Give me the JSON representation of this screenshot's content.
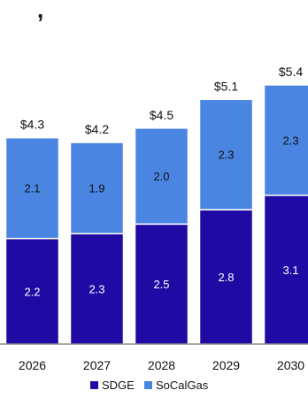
{
  "header_fragment": ", ",
  "chart_data": {
    "type": "bar",
    "stacked": true,
    "categories": [
      "2026",
      "2027",
      "2028",
      "2029",
      "2030"
    ],
    "series": [
      {
        "name": "SDGE",
        "values": [
          2.2,
          2.3,
          2.5,
          2.8,
          3.1
        ],
        "color": "#1f0ba3"
      },
      {
        "name": "SoCalGas",
        "values": [
          2.1,
          1.9,
          2.0,
          2.3,
          2.3
        ],
        "color": "#4a85e2"
      }
    ],
    "totals": [
      "$4.3",
      "$4.2",
      "$4.5",
      "$5.1",
      "$5.4"
    ],
    "ylim": [
      0,
      5.4
    ],
    "grid": false,
    "legend_position": "bottom"
  }
}
